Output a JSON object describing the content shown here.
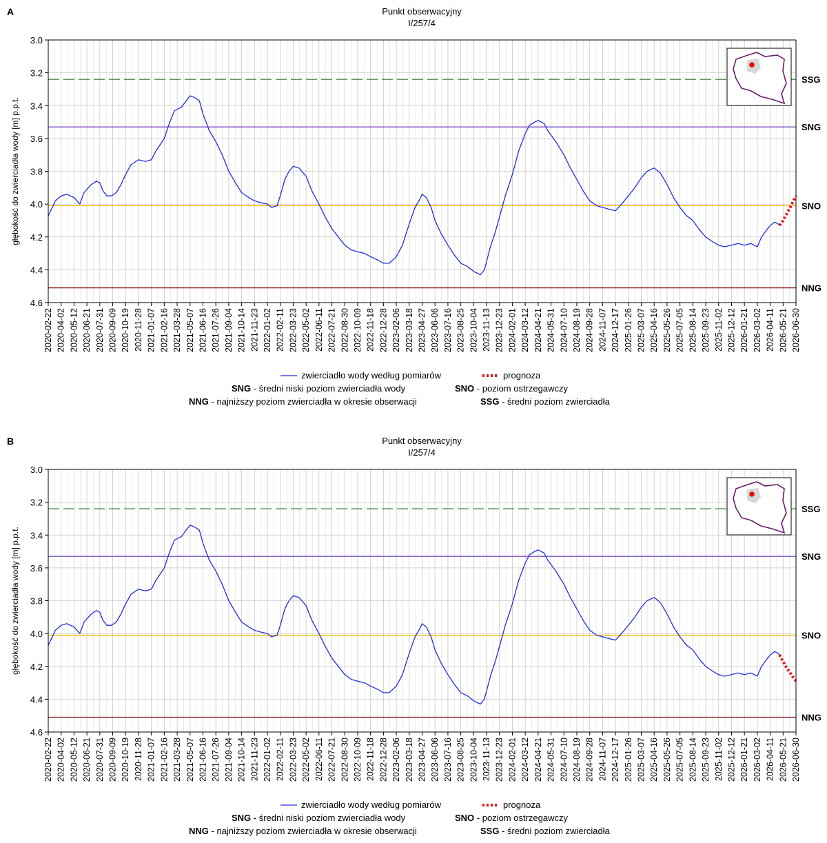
{
  "chart_data": [
    {
      "panel": "A",
      "type": "line",
      "title": "Punkt obserwacyjny",
      "subtitle": "I/257/4",
      "ylabel": "głębokość do zwierciadła wody [m] p.p.t.",
      "xlabel": "",
      "ylim": [
        3.0,
        4.6
      ],
      "y_inverted": true,
      "yticks": [
        "3.0",
        "3.2",
        "3.4",
        "3.6",
        "3.8",
        "4.0",
        "4.2",
        "4.4",
        "4.6"
      ],
      "xlim": [
        "2020-02-22",
        "2026-06-30"
      ],
      "xticks": [
        "2020-02-22",
        "2020-04-02",
        "2020-05-12",
        "2020-06-21",
        "2020-07-31",
        "2020-09-09",
        "2020-10-19",
        "2020-11-28",
        "2021-01-07",
        "2021-02-16",
        "2021-03-28",
        "2021-05-07",
        "2021-06-16",
        "2021-07-26",
        "2021-09-04",
        "2021-10-14",
        "2021-11-23",
        "2022-01-02",
        "2022-02-11",
        "2022-03-23",
        "2022-05-02",
        "2022-06-11",
        "2022-07-21",
        "2022-08-30",
        "2022-10-09",
        "2022-11-18",
        "2022-12-28",
        "2023-02-06",
        "2023-03-18",
        "2023-04-27",
        "2023-06-06",
        "2023-07-16",
        "2023-08-25",
        "2023-10-04",
        "2023-11-13",
        "2023-12-23",
        "2024-02-01",
        "2024-03-12",
        "2024-04-21",
        "2024-05-31",
        "2024-07-10",
        "2024-08-19",
        "2024-09-28",
        "2024-11-07",
        "2024-12-17",
        "2025-01-26",
        "2025-03-07",
        "2025-04-16",
        "2025-05-26",
        "2025-07-05",
        "2025-08-14",
        "2025-09-23",
        "2025-11-02",
        "2025-12-12",
        "2026-01-21",
        "2026-03-02",
        "2026-04-11",
        "2026-05-21",
        "2026-06-30"
      ],
      "grid": true,
      "reference_lines": [
        {
          "label": "SSG",
          "value": 3.24,
          "color": "#2e7d32",
          "style": "dashed"
        },
        {
          "label": "SNG",
          "value": 3.53,
          "color": "#7b4fc4",
          "style": "solid"
        },
        {
          "label": "SNO",
          "value": 4.01,
          "color": "#f0b400",
          "style": "solid"
        },
        {
          "label": "NNG",
          "value": 4.51,
          "color": "#8b1a1a",
          "style": "solid"
        }
      ],
      "series": [
        {
          "name": "zwierciadło wody według pomiarów",
          "color": "#1f2de0",
          "style": "solid",
          "x": [
            "2020-02-22",
            "2020-03-01",
            "2020-03-15",
            "2020-04-02",
            "2020-04-20",
            "2020-05-12",
            "2020-05-30",
            "2020-06-12",
            "2020-06-21",
            "2020-07-05",
            "2020-07-20",
            "2020-07-31",
            "2020-08-10",
            "2020-08-22",
            "2020-09-05",
            "2020-09-20",
            "2020-10-05",
            "2020-10-19",
            "2020-11-05",
            "2020-11-28",
            "2020-12-20",
            "2021-01-07",
            "2021-01-20",
            "2021-02-16",
            "2021-03-05",
            "2021-03-20",
            "2021-04-10",
            "2021-04-25",
            "2021-05-07",
            "2021-05-20",
            "2021-06-05",
            "2021-06-16",
            "2021-07-05",
            "2021-07-26",
            "2021-08-15",
            "2021-09-04",
            "2021-09-25",
            "2021-10-14",
            "2021-11-05",
            "2021-11-23",
            "2021-12-10",
            "2022-01-02",
            "2022-01-15",
            "2022-02-01",
            "2022-02-11",
            "2022-02-25",
            "2022-03-10",
            "2022-03-23",
            "2022-04-10",
            "2022-05-02",
            "2022-05-20",
            "2022-06-11",
            "2022-07-01",
            "2022-07-21",
            "2022-08-10",
            "2022-08-30",
            "2022-09-20",
            "2022-10-09",
            "2022-10-30",
            "2022-11-18",
            "2022-12-10",
            "2022-12-28",
            "2023-01-15",
            "2023-02-06",
            "2023-02-25",
            "2023-03-18",
            "2023-04-05",
            "2023-04-20",
            "2023-04-27",
            "2023-05-10",
            "2023-05-25",
            "2023-06-06",
            "2023-06-25",
            "2023-07-16",
            "2023-08-05",
            "2023-08-25",
            "2023-09-15",
            "2023-10-04",
            "2023-10-25",
            "2023-11-06",
            "2023-11-13",
            "2023-11-25",
            "2023-12-10",
            "2023-12-23",
            "2024-01-10",
            "2024-02-01",
            "2024-02-20",
            "2024-03-12",
            "2024-03-25",
            "2024-04-10",
            "2024-04-21",
            "2024-05-10",
            "2024-05-20",
            "2024-05-31",
            "2024-06-15",
            "2024-07-10",
            "2024-07-30",
            "2024-08-19",
            "2024-09-08",
            "2024-09-28",
            "2024-10-20",
            "2024-11-07",
            "2024-11-25",
            "2024-12-17",
            "2025-01-05",
            "2025-01-26",
            "2025-02-15",
            "2025-03-07",
            "2025-03-25",
            "2025-04-16",
            "2025-05-05",
            "2025-05-26",
            "2025-06-15",
            "2025-07-05",
            "2025-07-25",
            "2025-08-14",
            "2025-09-05",
            "2025-09-23",
            "2025-10-15",
            "2025-11-02",
            "2025-11-20",
            "2025-12-12",
            "2026-01-01",
            "2026-01-21",
            "2026-02-10",
            "2026-03-02",
            "2026-03-15",
            "2026-03-30",
            "2026-04-11",
            "2026-04-25",
            "2026-05-05",
            "2026-05-10"
          ],
          "y": [
            4.07,
            4.04,
            3.98,
            3.95,
            3.94,
            3.96,
            4.0,
            3.93,
            3.91,
            3.88,
            3.86,
            3.87,
            3.92,
            3.95,
            3.95,
            3.93,
            3.88,
            3.82,
            3.76,
            3.73,
            3.74,
            3.73,
            3.68,
            3.6,
            3.5,
            3.43,
            3.41,
            3.37,
            3.34,
            3.35,
            3.37,
            3.45,
            3.55,
            3.62,
            3.7,
            3.8,
            3.87,
            3.93,
            3.96,
            3.98,
            3.99,
            4.0,
            4.02,
            4.01,
            3.95,
            3.85,
            3.8,
            3.77,
            3.78,
            3.83,
            3.92,
            4.0,
            4.08,
            4.15,
            4.2,
            4.25,
            4.28,
            4.29,
            4.3,
            4.32,
            4.34,
            4.36,
            4.36,
            4.32,
            4.25,
            4.12,
            4.02,
            3.97,
            3.94,
            3.96,
            4.02,
            4.1,
            4.18,
            4.25,
            4.31,
            4.36,
            4.38,
            4.41,
            4.43,
            4.4,
            4.35,
            4.26,
            4.17,
            4.08,
            3.95,
            3.82,
            3.68,
            3.57,
            3.52,
            3.5,
            3.49,
            3.51,
            3.55,
            3.58,
            3.62,
            3.7,
            3.78,
            3.85,
            3.92,
            3.98,
            4.01,
            4.02,
            4.03,
            4.04,
            4.0,
            3.95,
            3.9,
            3.84,
            3.8,
            3.78,
            3.81,
            3.88,
            3.96,
            4.02,
            4.07,
            4.1,
            4.16,
            4.2,
            4.23,
            4.25,
            4.26,
            4.25,
            4.24,
            4.25,
            4.24,
            4.26,
            4.2,
            4.16,
            4.13,
            4.11,
            4.12,
            4.13
          ]
        },
        {
          "name": "prognoza",
          "color": "#ee1111",
          "style": "dotted",
          "x": [
            "2026-05-10",
            "2026-05-21",
            "2026-06-01",
            "2026-06-12",
            "2026-06-22",
            "2026-06-30"
          ],
          "y": [
            4.13,
            4.1,
            4.06,
            4.02,
            3.98,
            3.95
          ]
        }
      ]
    },
    {
      "panel": "B",
      "type": "line",
      "title": "Punkt obserwacyjny",
      "subtitle": "I/257/4",
      "ylabel": "głębokość do zwierciadła wody [m] p.p.t.",
      "xlabel": "",
      "ylim": [
        3.0,
        4.6
      ],
      "y_inverted": true,
      "yticks": [
        "3.0",
        "3.2",
        "3.4",
        "3.6",
        "3.8",
        "4.0",
        "4.2",
        "4.4",
        "4.6"
      ],
      "xlim": [
        "2020-02-22",
        "2026-06-30"
      ],
      "xticks": [
        "2020-02-22",
        "2020-04-02",
        "2020-05-12",
        "2020-06-21",
        "2020-07-31",
        "2020-09-09",
        "2020-10-19",
        "2020-11-28",
        "2021-01-07",
        "2021-02-16",
        "2021-03-28",
        "2021-05-07",
        "2021-06-16",
        "2021-07-26",
        "2021-09-04",
        "2021-10-14",
        "2021-11-23",
        "2022-01-02",
        "2022-02-11",
        "2022-03-23",
        "2022-05-02",
        "2022-06-11",
        "2022-07-21",
        "2022-08-30",
        "2022-10-09",
        "2022-11-18",
        "2022-12-28",
        "2023-02-06",
        "2023-03-18",
        "2023-04-27",
        "2023-06-06",
        "2023-07-16",
        "2023-08-25",
        "2023-10-04",
        "2023-11-13",
        "2023-12-23",
        "2024-02-01",
        "2024-03-12",
        "2024-04-21",
        "2024-05-31",
        "2024-07-10",
        "2024-08-19",
        "2024-09-28",
        "2024-11-07",
        "2024-12-17",
        "2025-01-26",
        "2025-03-07",
        "2025-04-16",
        "2025-05-26",
        "2025-07-05",
        "2025-08-14",
        "2025-09-23",
        "2025-11-02",
        "2025-12-12",
        "2026-01-21",
        "2026-03-02",
        "2026-04-11",
        "2026-05-21",
        "2026-06-30"
      ],
      "grid": true,
      "reference_lines": [
        {
          "label": "SSG",
          "value": 3.24,
          "color": "#2e7d32",
          "style": "dashed"
        },
        {
          "label": "SNG",
          "value": 3.53,
          "color": "#7b4fc4",
          "style": "solid"
        },
        {
          "label": "SNO",
          "value": 4.01,
          "color": "#f0b400",
          "style": "solid"
        },
        {
          "label": "NNG",
          "value": 4.51,
          "color": "#8b1a1a",
          "style": "solid"
        }
      ],
      "series": [
        {
          "name": "zwierciadło wody według pomiarów",
          "color": "#1f2de0",
          "style": "solid",
          "x": [
            "2020-02-22",
            "2020-03-01",
            "2020-03-15",
            "2020-04-02",
            "2020-04-20",
            "2020-05-12",
            "2020-05-30",
            "2020-06-12",
            "2020-06-21",
            "2020-07-05",
            "2020-07-20",
            "2020-07-31",
            "2020-08-10",
            "2020-08-22",
            "2020-09-05",
            "2020-09-20",
            "2020-10-05",
            "2020-10-19",
            "2020-11-05",
            "2020-11-28",
            "2020-12-20",
            "2021-01-07",
            "2021-01-20",
            "2021-02-16",
            "2021-03-05",
            "2021-03-20",
            "2021-04-10",
            "2021-04-25",
            "2021-05-07",
            "2021-05-20",
            "2021-06-05",
            "2021-06-16",
            "2021-07-05",
            "2021-07-26",
            "2021-08-15",
            "2021-09-04",
            "2021-09-25",
            "2021-10-14",
            "2021-11-05",
            "2021-11-23",
            "2021-12-10",
            "2022-01-02",
            "2022-01-15",
            "2022-02-01",
            "2022-02-11",
            "2022-02-25",
            "2022-03-10",
            "2022-03-23",
            "2022-04-10",
            "2022-05-02",
            "2022-05-20",
            "2022-06-11",
            "2022-07-01",
            "2022-07-21",
            "2022-08-10",
            "2022-08-30",
            "2022-09-20",
            "2022-10-09",
            "2022-10-30",
            "2022-11-18",
            "2022-12-10",
            "2022-12-28",
            "2023-01-15",
            "2023-02-06",
            "2023-02-25",
            "2023-03-18",
            "2023-04-05",
            "2023-04-20",
            "2023-04-27",
            "2023-05-10",
            "2023-05-25",
            "2023-06-06",
            "2023-06-25",
            "2023-07-16",
            "2023-08-05",
            "2023-08-25",
            "2023-09-15",
            "2023-10-04",
            "2023-10-25",
            "2023-11-06",
            "2023-11-13",
            "2023-11-25",
            "2023-12-10",
            "2023-12-23",
            "2024-01-10",
            "2024-02-01",
            "2024-02-20",
            "2024-03-12",
            "2024-03-25",
            "2024-04-10",
            "2024-04-21",
            "2024-05-10",
            "2024-05-20",
            "2024-05-31",
            "2024-06-15",
            "2024-07-10",
            "2024-07-30",
            "2024-08-19",
            "2024-09-08",
            "2024-09-28",
            "2024-10-20",
            "2024-11-07",
            "2024-11-25",
            "2024-12-17",
            "2025-01-05",
            "2025-01-26",
            "2025-02-15",
            "2025-03-07",
            "2025-03-25",
            "2025-04-16",
            "2025-05-05",
            "2025-05-26",
            "2025-06-15",
            "2025-07-05",
            "2025-07-25",
            "2025-08-14",
            "2025-09-05",
            "2025-09-23",
            "2025-10-15",
            "2025-11-02",
            "2025-11-20",
            "2025-12-12",
            "2026-01-01",
            "2026-01-21",
            "2026-02-10",
            "2026-03-02",
            "2026-03-15",
            "2026-03-30",
            "2026-04-11",
            "2026-04-25",
            "2026-05-05",
            "2026-05-10"
          ],
          "y": [
            4.07,
            4.04,
            3.98,
            3.95,
            3.94,
            3.96,
            4.0,
            3.93,
            3.91,
            3.88,
            3.86,
            3.87,
            3.92,
            3.95,
            3.95,
            3.93,
            3.88,
            3.82,
            3.76,
            3.73,
            3.74,
            3.73,
            3.68,
            3.6,
            3.5,
            3.43,
            3.41,
            3.37,
            3.34,
            3.35,
            3.37,
            3.45,
            3.55,
            3.62,
            3.7,
            3.8,
            3.87,
            3.93,
            3.96,
            3.98,
            3.99,
            4.0,
            4.02,
            4.01,
            3.95,
            3.85,
            3.8,
            3.77,
            3.78,
            3.83,
            3.92,
            4.0,
            4.08,
            4.15,
            4.2,
            4.25,
            4.28,
            4.29,
            4.3,
            4.32,
            4.34,
            4.36,
            4.36,
            4.32,
            4.25,
            4.12,
            4.02,
            3.97,
            3.94,
            3.96,
            4.02,
            4.1,
            4.18,
            4.25,
            4.31,
            4.36,
            4.38,
            4.41,
            4.43,
            4.4,
            4.35,
            4.26,
            4.17,
            4.08,
            3.95,
            3.82,
            3.68,
            3.57,
            3.52,
            3.5,
            3.49,
            3.51,
            3.55,
            3.58,
            3.62,
            3.7,
            3.78,
            3.85,
            3.92,
            3.98,
            4.01,
            4.02,
            4.03,
            4.04,
            4.0,
            3.95,
            3.9,
            3.84,
            3.8,
            3.78,
            3.81,
            3.88,
            3.96,
            4.02,
            4.07,
            4.1,
            4.16,
            4.2,
            4.23,
            4.25,
            4.26,
            4.25,
            4.24,
            4.25,
            4.24,
            4.26,
            4.2,
            4.16,
            4.13,
            4.11,
            4.12,
            4.13
          ]
        },
        {
          "name": "prognoza",
          "color": "#ee1111",
          "style": "dotted",
          "x": [
            "2026-05-10",
            "2026-05-21",
            "2026-06-01",
            "2026-06-12",
            "2026-06-22",
            "2026-06-30"
          ],
          "y": [
            4.13,
            4.17,
            4.21,
            4.24,
            4.27,
            4.29
          ]
        }
      ]
    }
  ],
  "legend": {
    "line1": [
      {
        "kind": "line",
        "color": "#1f2de0",
        "text": "zwierciadło wody według pomiarów"
      },
      {
        "kind": "dotted",
        "color": "#ee1111",
        "text": "prognoza"
      }
    ],
    "line2": [
      {
        "abbr": "SNG",
        "text": " - średni niski poziom zwierciadła wody"
      },
      {
        "abbr": "SNO",
        "text": " - poziom ostrzegawczy"
      }
    ],
    "line3": [
      {
        "abbr": "NNG",
        "text": " - najniższy poziom zwierciadła w okresie obserwacji"
      },
      {
        "abbr": "SSG",
        "text": " - średni poziom zwierciadła"
      }
    ]
  },
  "inset_map": {
    "icon": "poland-map-icon",
    "border_color": "#6a1b6a",
    "fill_color": "#ffffff",
    "region_color": "#d8d8d8",
    "marker_color": "#dd1111"
  }
}
